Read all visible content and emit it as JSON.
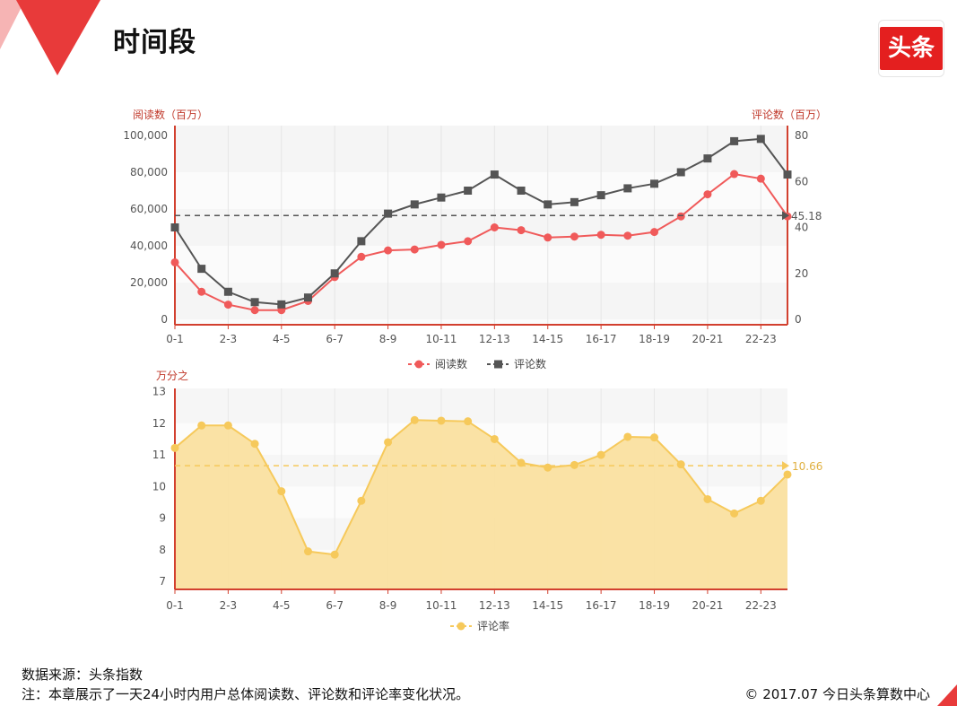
{
  "page": {
    "title": "时间段",
    "logo_text": "头条",
    "source_note": "数据来源：头条指数",
    "chapter_note": "注：本章展示了一天24小时内用户总体阅读数、评论数和评论率变化状况。",
    "copyright": "© 2017.07 今日头条算数中心",
    "colors": {
      "accent": "#e41f1f",
      "read": "#f05a5a",
      "comment": "#555555",
      "rate": "#f6c95b"
    }
  },
  "chart_data": [
    {
      "type": "line",
      "x_tick_labels": [
        "0-1",
        "2-3",
        "4-5",
        "6-7",
        "8-9",
        "10-11",
        "12-13",
        "14-15",
        "16-17",
        "18-19",
        "20-21",
        "22-23"
      ],
      "x": [
        0,
        1,
        2,
        3,
        4,
        5,
        6,
        7,
        8,
        9,
        10,
        11,
        12,
        13,
        14,
        15,
        16,
        17,
        18,
        19,
        20,
        21,
        22,
        23
      ],
      "ylabel_left": "阅读数（百万）",
      "ylabel_right": "评论数（百万）",
      "y_left_ticks": [
        "0",
        "20,000",
        "40,000",
        "60,000",
        "80,000",
        "100,000"
      ],
      "y_right_ticks": [
        "0",
        "20",
        "40",
        "60",
        "80"
      ],
      "ylim_left": [
        0,
        100000
      ],
      "ylim_right": [
        0,
        80
      ],
      "series": [
        {
          "name": "阅读数",
          "axis": "left",
          "color": "#f05a5a",
          "marker": "circle",
          "values": [
            31000,
            15000,
            8000,
            5000,
            5000,
            10000,
            23000,
            34000,
            37500,
            38000,
            40500,
            42500,
            50000,
            48500,
            44500,
            45000,
            46000,
            45500,
            47500,
            56000,
            68000,
            79000,
            76500,
            56000
          ]
        },
        {
          "name": "评论数",
          "axis": "right",
          "color": "#555555",
          "marker": "square",
          "values": [
            40,
            22,
            12,
            7.5,
            6.5,
            9.5,
            20,
            34,
            46,
            50,
            53,
            56,
            63,
            56,
            50,
            51,
            54,
            57,
            59,
            64,
            70,
            77.5,
            78.5,
            63
          ]
        }
      ],
      "markline": {
        "axis": "right",
        "value": 45.18,
        "label": "45.18"
      },
      "legend": "bottom-center",
      "grid": "alternating-bands"
    },
    {
      "type": "area",
      "x_tick_labels": [
        "0-1",
        "2-3",
        "4-5",
        "6-7",
        "8-9",
        "10-11",
        "12-13",
        "14-15",
        "16-17",
        "18-19",
        "20-21",
        "22-23"
      ],
      "x": [
        0,
        1,
        2,
        3,
        4,
        5,
        6,
        7,
        8,
        9,
        10,
        11,
        12,
        13,
        14,
        15,
        16,
        17,
        18,
        19,
        20,
        21,
        22,
        23
      ],
      "ylabel": "万分之",
      "y_ticks": [
        "7",
        "8",
        "9",
        "10",
        "11",
        "12",
        "13"
      ],
      "ylim": [
        6.75,
        13.1
      ],
      "series": [
        {
          "name": "评论率",
          "color": "#f6c95b",
          "marker": "circle",
          "values": [
            11.22,
            11.93,
            11.93,
            11.35,
            9.85,
            7.95,
            7.85,
            9.55,
            11.4,
            12.1,
            12.08,
            12.06,
            11.5,
            10.75,
            10.6,
            10.68,
            11.0,
            11.57,
            11.55,
            10.7,
            9.6,
            9.15,
            9.55,
            10.38
          ]
        }
      ],
      "markline": {
        "value": 10.66,
        "label": "10.66"
      },
      "legend": "bottom-center",
      "grid": "alternating-bands"
    }
  ]
}
